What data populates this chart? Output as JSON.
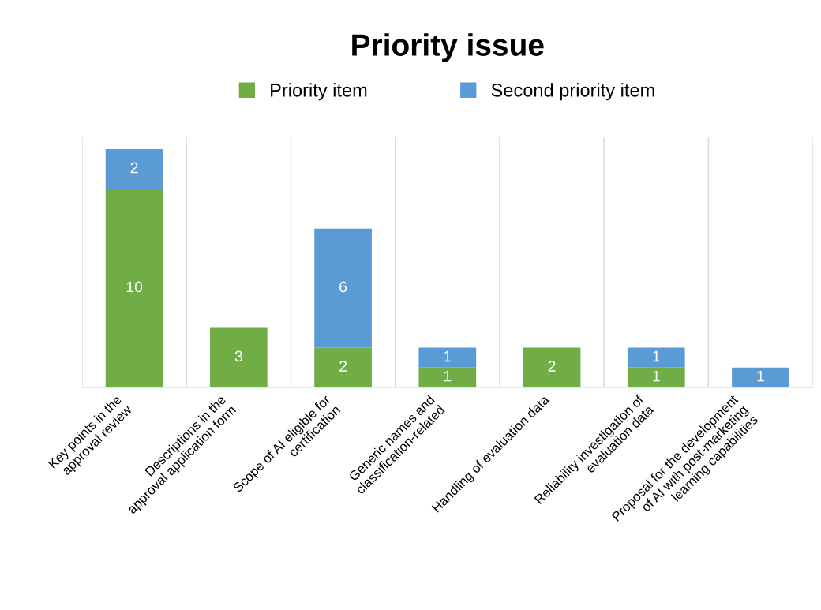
{
  "chart_data": {
    "type": "bar",
    "title": "Priority issue",
    "stacked": true,
    "legend": "top",
    "grid": "x",
    "categories": [
      "Key points in the\napproval review",
      "Descriptions in the\napproval application form",
      "Scope of AI eligible for\ncertification",
      "Generic names and\nclassification-related",
      "Handling of evaluation data",
      "Reliability investigation of\nevaluation data",
      "Proposal for the development\nof AI with post-marketing\nlearning capabilities"
    ],
    "series": [
      {
        "name": "Priority item",
        "color": "#70ad47",
        "values": [
          10,
          3,
          2,
          1,
          2,
          1,
          0
        ],
        "value_labels": [
          "10",
          "3",
          "2",
          "1",
          "2",
          "1",
          null
        ]
      },
      {
        "name": "Second priority item",
        "color": "#5b9bd5",
        "values": [
          2,
          0,
          6,
          1,
          0,
          1,
          1
        ],
        "value_labels": [
          "2",
          null,
          "6",
          "1",
          null,
          "1",
          "1"
        ]
      }
    ]
  }
}
